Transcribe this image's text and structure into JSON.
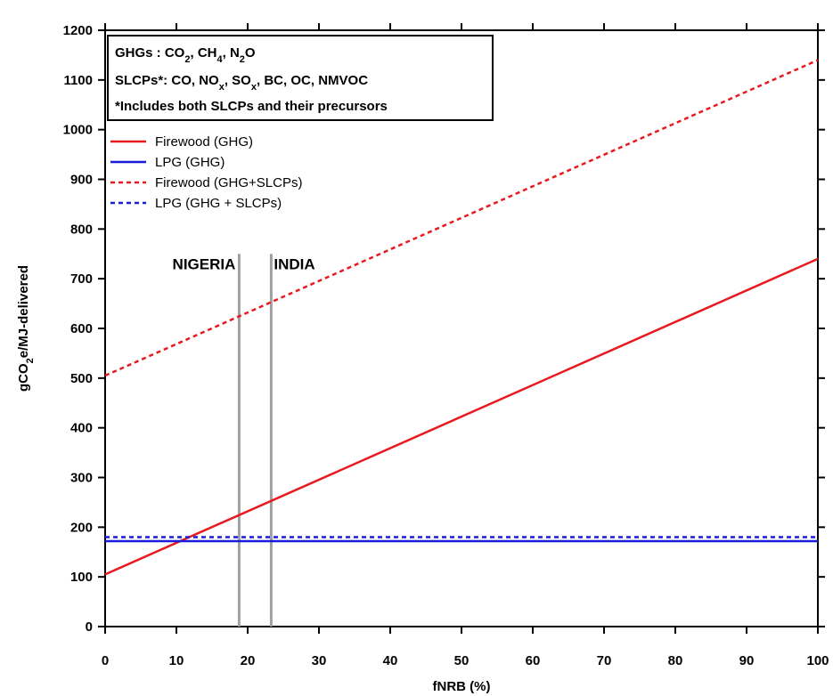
{
  "chart_data": {
    "type": "line",
    "title": "",
    "xlabel": "fNRB (%)",
    "ylabel_parts": [
      "gCO",
      "2",
      "e/MJ-delivered"
    ],
    "xlim": [
      0,
      100
    ],
    "ylim": [
      0,
      1200
    ],
    "xticks": [
      0,
      10,
      20,
      30,
      40,
      50,
      60,
      70,
      80,
      90,
      100
    ],
    "yticks": [
      0,
      100,
      200,
      300,
      400,
      500,
      600,
      700,
      800,
      900,
      1000,
      1100,
      1200
    ],
    "grid": false,
    "legend_position": "top-left",
    "series": [
      {
        "name": "Firewood (GHG)",
        "color": "#e8191f",
        "style": "solid",
        "x": [
          0,
          100
        ],
        "y": [
          105,
          740
        ]
      },
      {
        "name": "LPG (GHG)",
        "color": "#1a1adb",
        "style": "solid",
        "x": [
          0,
          100
        ],
        "y": [
          172,
          172
        ]
      },
      {
        "name": "Firewood (GHG+SLCPs)",
        "color": "#e8191f",
        "style": "dotted",
        "x": [
          0,
          100
        ],
        "y": [
          505,
          1140
        ]
      },
      {
        "name": "LPG (GHG + SLCPs)",
        "color": "#1a1adb",
        "style": "dotted",
        "x": [
          0,
          100
        ],
        "y": [
          180,
          180
        ]
      }
    ],
    "vertical_markers": [
      {
        "label": "NIGERIA",
        "x": 18.8,
        "y_top": 750,
        "color": "#a0a0a0",
        "label_side": "left"
      },
      {
        "label": "INDIA",
        "x": 23.3,
        "y_top": 750,
        "color": "#a0a0a0",
        "label_side": "right"
      }
    ],
    "info_box": {
      "ghg": {
        "prefix": "GHGs : ",
        "items": [
          [
            "CO",
            "2"
          ],
          [
            "CH",
            "4"
          ],
          [
            "N",
            "2",
            "O"
          ]
        ]
      },
      "slcp": {
        "prefix": "SLCPs*: ",
        "items": [
          [
            "CO"
          ],
          [
            "NO",
            "x"
          ],
          [
            "SO",
            "x"
          ],
          [
            "BC"
          ],
          [
            "OC"
          ],
          [
            " NMVOC"
          ]
        ]
      },
      "note": "*Includes both SLCPs and their precursors"
    }
  }
}
